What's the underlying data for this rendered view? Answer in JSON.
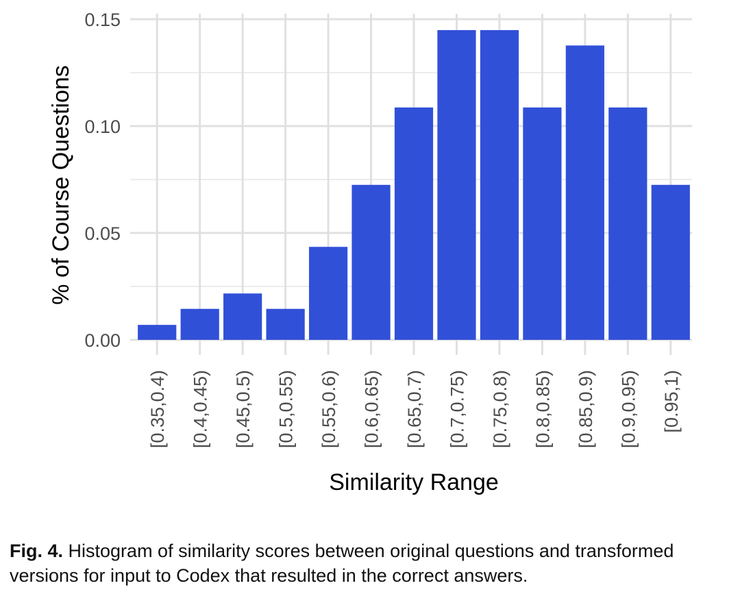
{
  "chart_data": {
    "type": "bar",
    "categories": [
      "[0.35,0.4)",
      "[0.4,0.45)",
      "[0.45,0.5)",
      "[0.5,0.55)",
      "[0.55,0.6)",
      "[0.6,0.65)",
      "[0.65,0.7)",
      "[0.7,0.75)",
      "[0.75,0.8)",
      "[0.8,0.85)",
      "[0.85,0.9)",
      "[0.9,0.95)",
      "[0.95,1)"
    ],
    "values": [
      0.007,
      0.0145,
      0.0217,
      0.0145,
      0.0435,
      0.0725,
      0.1087,
      0.1449,
      0.1449,
      0.1087,
      0.1377,
      0.1087,
      0.0725
    ],
    "xlabel": "Similarity Range",
    "ylabel": "% of Course Questions",
    "ylim": [
      0,
      0.15
    ],
    "yticks": [
      "0.00",
      "0.05",
      "0.10",
      "0.15"
    ],
    "bar_color": "#3150d8",
    "grid": true,
    "legend": "none"
  },
  "caption": {
    "label": "Fig. 4.",
    "text": "Histogram of similarity scores between original questions and transformed versions for input to Codex that resulted in the correct answers."
  }
}
